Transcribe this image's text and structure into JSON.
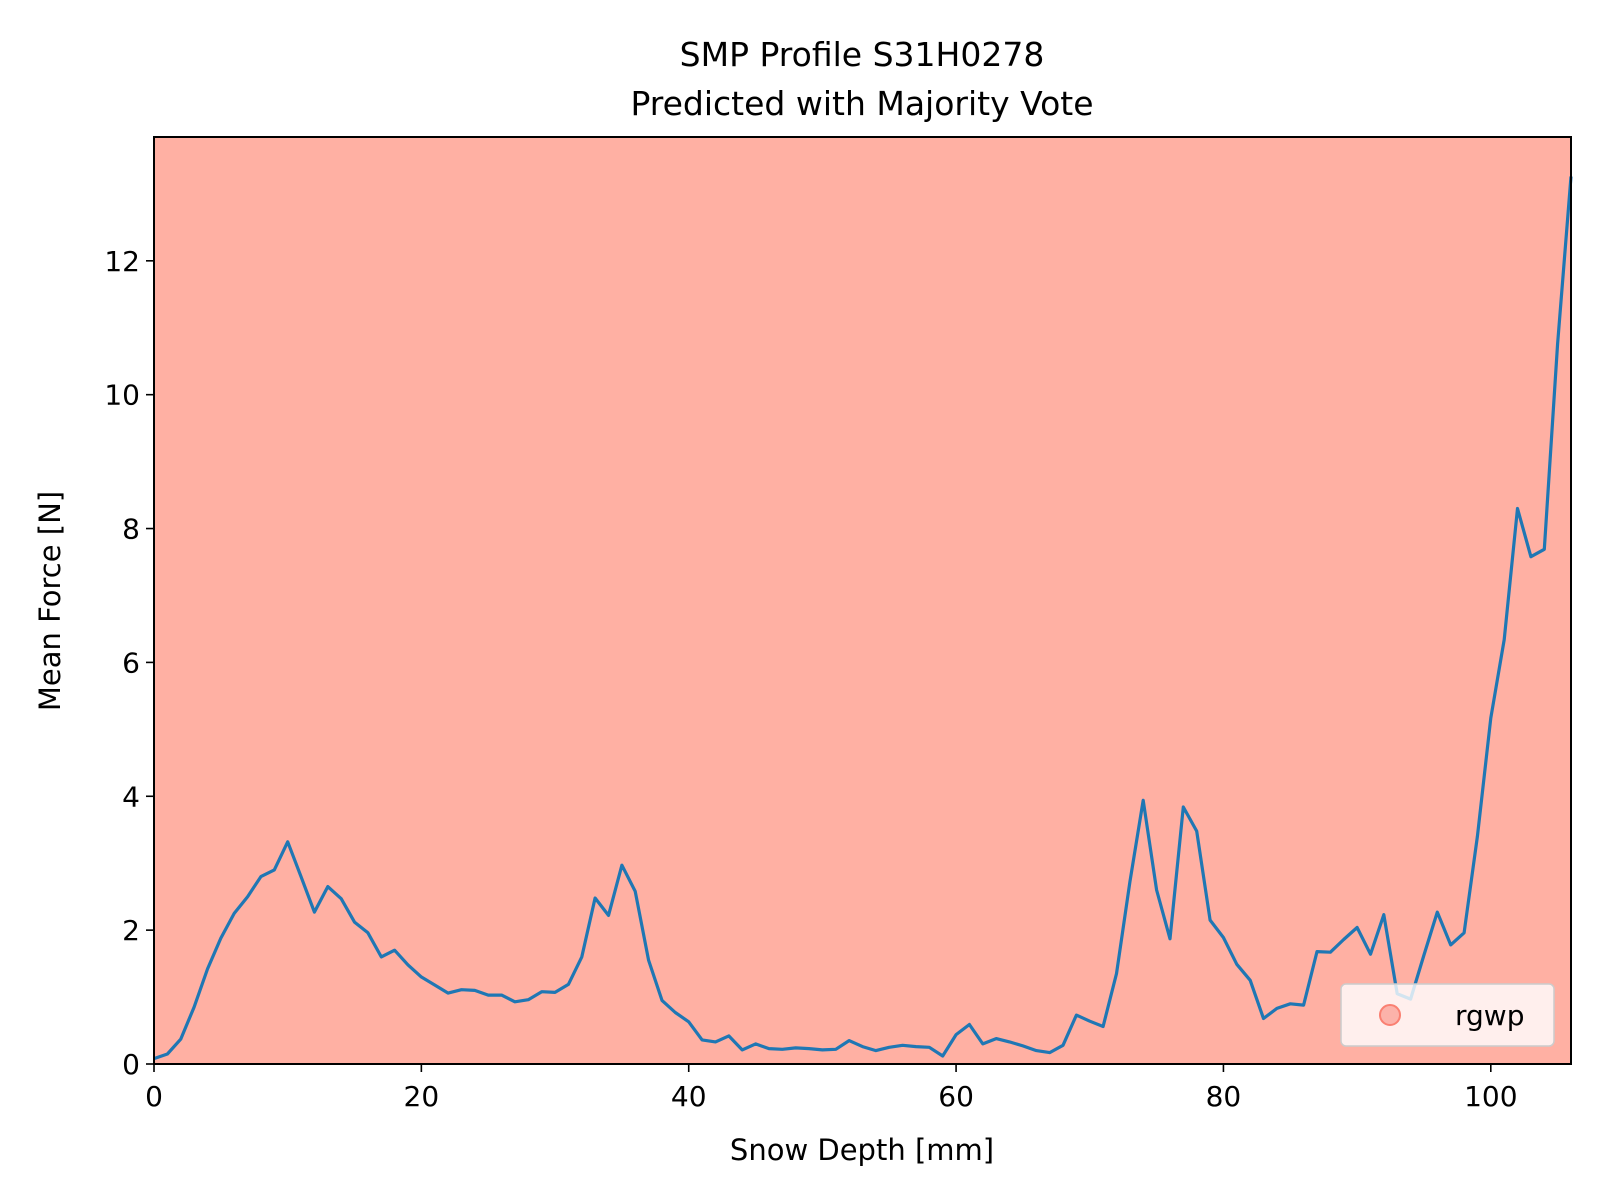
{
  "chart_data": {
    "type": "line",
    "title": "SMP Profile S31H0278",
    "subtitle": "Predicted with Majority Vote",
    "xlabel": "Snow Depth [mm]",
    "ylabel": "Mean Force [N]",
    "xlim": [
      0,
      106
    ],
    "ylim": [
      0,
      13.85
    ],
    "xticks": [
      0,
      20,
      40,
      60,
      80,
      100
    ],
    "yticks": [
      0,
      2,
      4,
      6,
      8,
      10,
      12
    ],
    "grid": false,
    "background_region": {
      "label": "rgwp",
      "from": 0,
      "to": 106,
      "color": "#ffb0a3"
    },
    "legend": {
      "position": "lower-right",
      "entries": [
        {
          "label": "rgwp",
          "marker": "circle",
          "color": "#fa8072"
        }
      ]
    },
    "series": [
      {
        "color": "#1f77b4",
        "x": [
          0,
          1,
          2,
          3,
          4,
          5,
          6,
          7,
          8,
          9,
          10,
          11,
          12,
          13,
          14,
          15,
          16,
          17,
          18,
          19,
          20,
          21,
          22,
          23,
          24,
          25,
          26,
          27,
          28,
          29,
          30,
          31,
          32,
          33,
          34,
          35,
          36,
          37,
          38,
          39,
          40,
          41,
          42,
          43,
          44,
          45,
          46,
          47,
          48,
          49,
          50,
          51,
          52,
          53,
          54,
          55,
          56,
          57,
          58,
          59,
          60,
          61,
          62,
          63,
          64,
          65,
          66,
          67,
          68,
          69,
          70,
          71,
          72,
          73,
          74,
          75,
          76,
          77,
          78,
          79,
          80,
          81,
          82,
          83,
          84,
          85,
          86,
          87,
          88,
          89,
          90,
          91,
          92,
          93,
          94,
          95,
          96,
          97,
          98,
          99,
          100,
          101,
          102,
          103,
          104,
          105,
          106
        ],
        "y": [
          0.08,
          0.15,
          0.37,
          0.85,
          1.42,
          1.88,
          2.25,
          2.5,
          2.8,
          2.9,
          3.32,
          2.8,
          2.27,
          2.65,
          2.47,
          2.12,
          1.96,
          1.6,
          1.7,
          1.48,
          1.3,
          1.18,
          1.06,
          1.11,
          1.1,
          1.03,
          1.03,
          0.93,
          0.96,
          1.08,
          1.07,
          1.19,
          1.6,
          2.48,
          2.22,
          2.97,
          2.58,
          1.55,
          0.95,
          0.77,
          0.63,
          0.36,
          0.33,
          0.42,
          0.21,
          0.3,
          0.23,
          0.22,
          0.24,
          0.23,
          0.21,
          0.22,
          0.35,
          0.26,
          0.2,
          0.25,
          0.28,
          0.26,
          0.25,
          0.12,
          0.44,
          0.59,
          0.3,
          0.38,
          0.33,
          0.27,
          0.2,
          0.17,
          0.28,
          0.73,
          0.64,
          0.56,
          1.35,
          2.72,
          3.94,
          2.6,
          1.87,
          3.84,
          3.48,
          2.15,
          1.89,
          1.49,
          1.25,
          0.68,
          0.83,
          0.9,
          0.88,
          1.68,
          1.67,
          1.86,
          2.04,
          1.64,
          2.23,
          1.05,
          0.97,
          1.63,
          2.27,
          1.78,
          1.96,
          3.4,
          5.17,
          6.34,
          8.3,
          7.58,
          7.69,
          10.76,
          13.26
        ]
      }
    ]
  }
}
